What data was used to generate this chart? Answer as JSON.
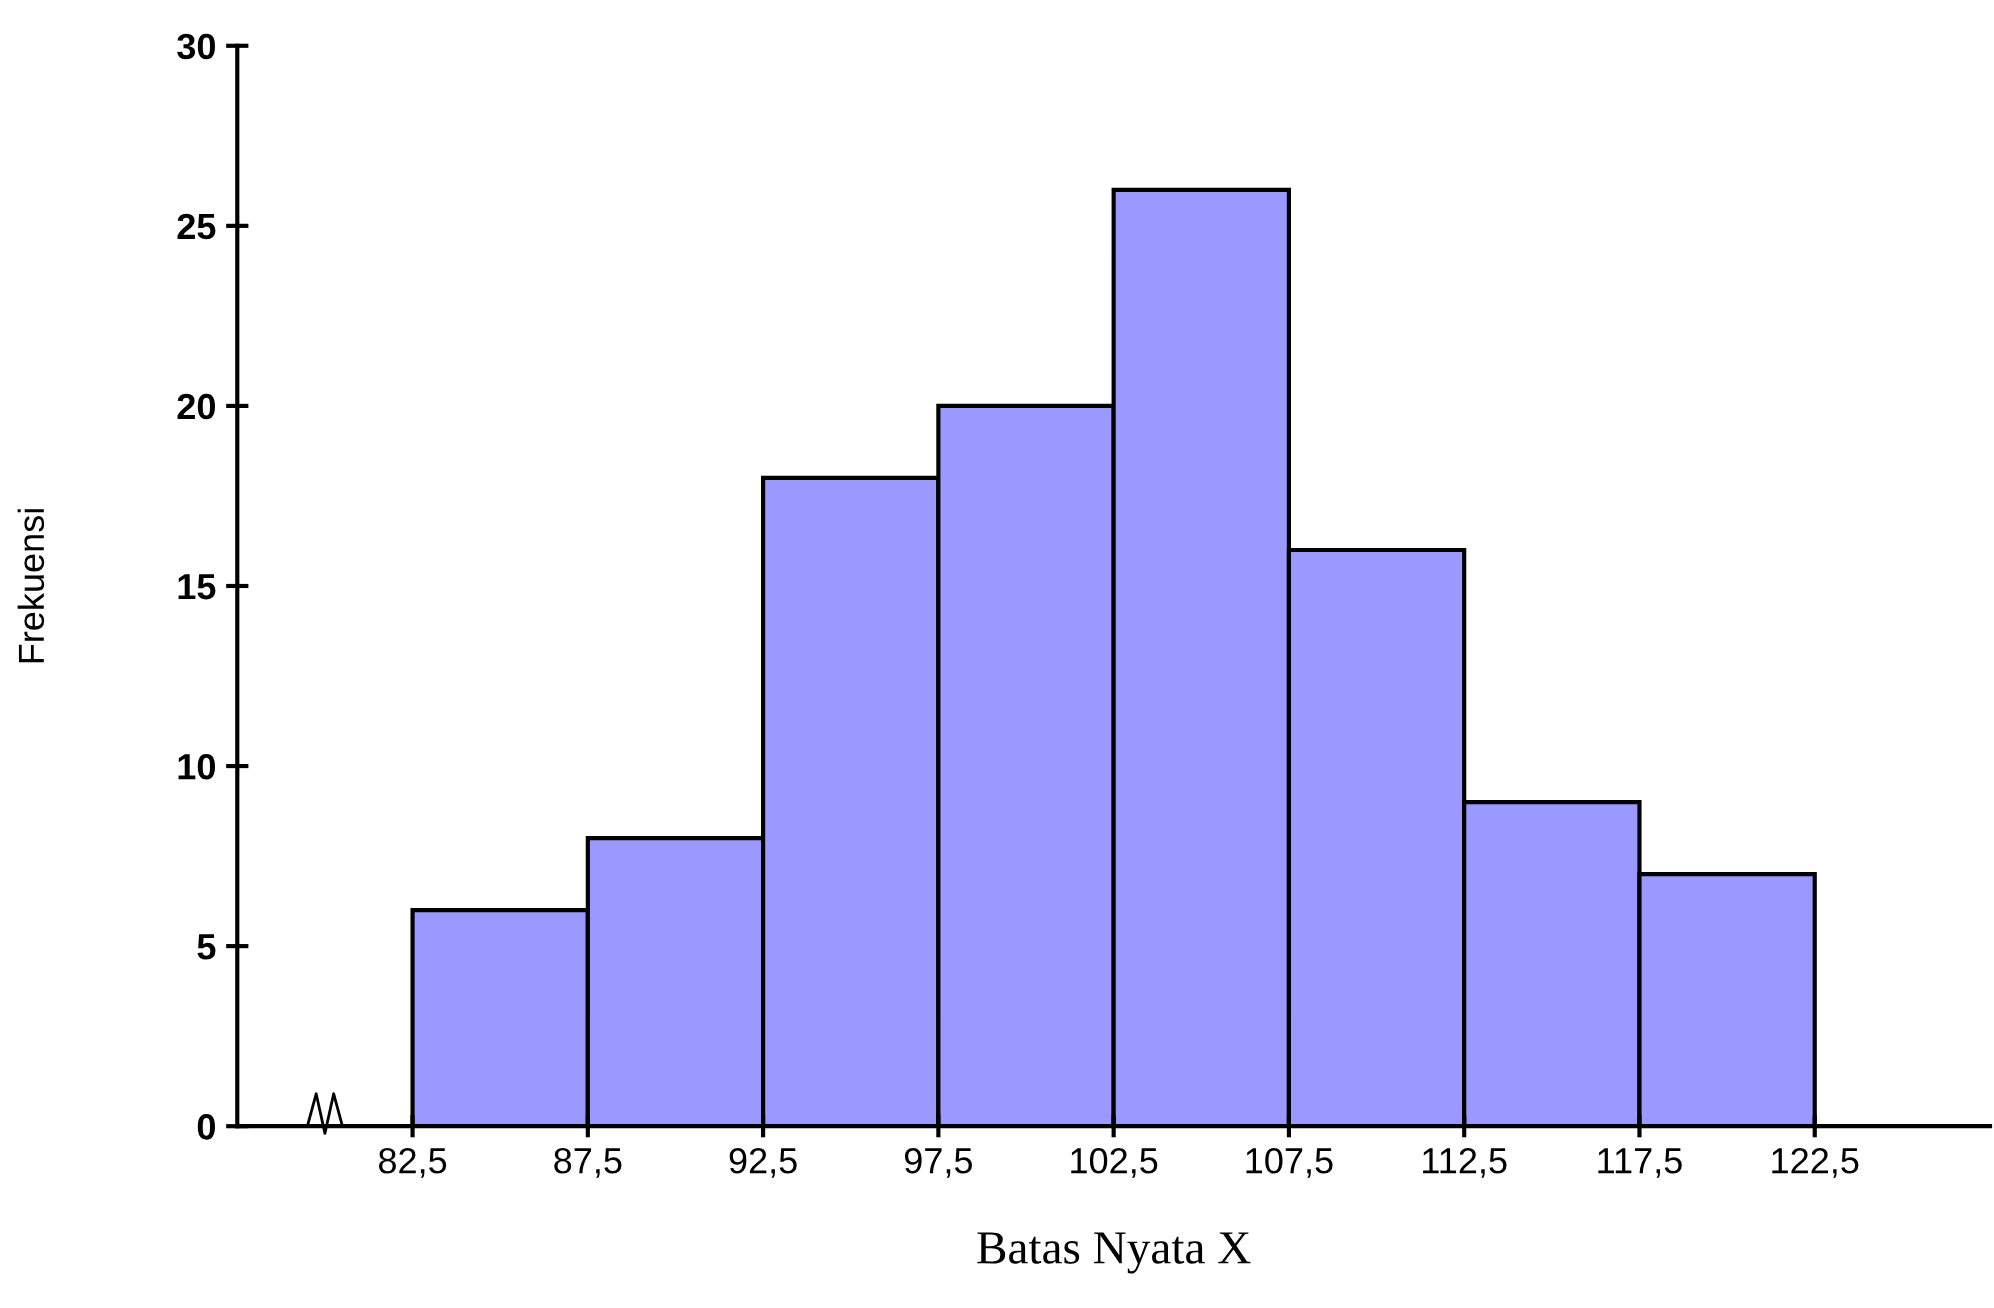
{
  "chart_data": {
    "type": "histogram",
    "xlabel": "Batas Nyata X",
    "ylabel": "Frekuensi",
    "bins": [
      82.5,
      87.5,
      92.5,
      97.5,
      102.5,
      107.5,
      112.5,
      117.5,
      122.5
    ],
    "values": [
      6,
      8,
      18,
      20,
      26,
      16,
      9,
      7
    ],
    "color": "#9999ff",
    "xlim": [
      77.5,
      127.5
    ],
    "xticks": [
      {
        "value": 82.5,
        "label": "82,5"
      },
      {
        "value": 87.5,
        "label": "87,5"
      },
      {
        "value": 92.5,
        "label": "92,5"
      },
      {
        "value": 97.5,
        "label": "97,5"
      },
      {
        "value": 102.5,
        "label": "102,5"
      },
      {
        "value": 107.5,
        "label": "107,5"
      },
      {
        "value": 112.5,
        "label": "112,5"
      },
      {
        "value": 117.5,
        "label": "117,5"
      },
      {
        "value": 122.5,
        "label": "122,5"
      }
    ],
    "ylim": [
      0,
      30
    ],
    "yticks": [
      0,
      5,
      10,
      15,
      20,
      25,
      30
    ],
    "grid": false,
    "legend": false
  }
}
